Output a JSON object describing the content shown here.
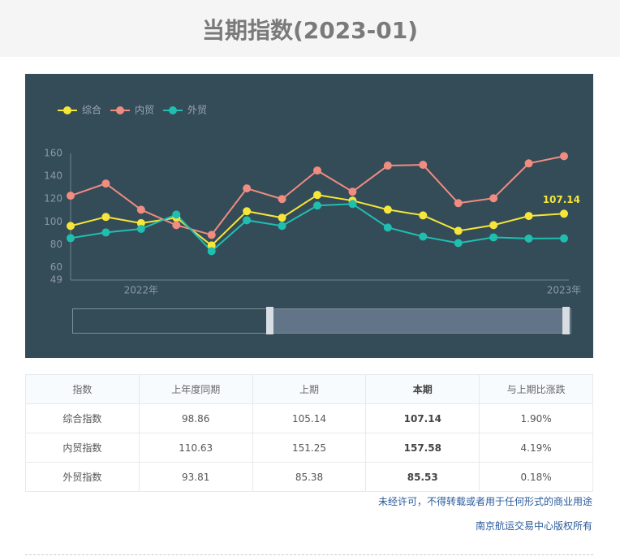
{
  "header": {
    "title": "当期指数(2023-01)"
  },
  "chart_data": {
    "type": "line",
    "categories": [
      null,
      null,
      "2022年",
      null,
      null,
      null,
      null,
      null,
      null,
      null,
      null,
      null,
      null,
      null,
      "2023年"
    ],
    "series": [
      {
        "name": "综合",
        "color": "#f5e639",
        "values": [
          96.4,
          104.3,
          98.86,
          103.6,
          79.3,
          109.3,
          103.6,
          123.6,
          118.6,
          110.7,
          105.7,
          92.1,
          97.1,
          105.14,
          107.14
        ]
      },
      {
        "name": "内贸",
        "color": "#f08c80",
        "values": [
          122.9,
          133.6,
          110.63,
          97.1,
          88.6,
          129.3,
          120,
          145,
          126.4,
          149.3,
          150,
          116.4,
          120.7,
          151.25,
          157.58
        ]
      },
      {
        "name": "外贸",
        "color": "#1fbfb0",
        "values": [
          85.7,
          90.7,
          93.81,
          106.4,
          74.3,
          101.4,
          96.4,
          114.3,
          115.7,
          95,
          87.1,
          81.4,
          86.4,
          85.38,
          85.53
        ]
      }
    ],
    "ylim": [
      49,
      160
    ],
    "yticks": [
      49,
      60,
      80,
      100,
      120,
      140,
      160
    ],
    "grid": false,
    "legend": "top-left"
  },
  "table": {
    "header": [
      "指数",
      "上年度同期",
      "上期",
      "本期",
      "与上期比涨跌"
    ],
    "rows": [
      [
        "综合指数",
        "98.86",
        "105.14",
        "107.14",
        "1.90%"
      ],
      [
        "内贸指数",
        "110.63",
        "151.25",
        "157.58",
        "4.19%"
      ],
      [
        "外贸指数",
        "93.81",
        "85.38",
        "85.53",
        "0.18%"
      ]
    ]
  },
  "footer": {
    "notice": "未经许可，不得转载或者用于任何形式的商业用途",
    "copyright": "南京航运交易中心版权所有"
  }
}
